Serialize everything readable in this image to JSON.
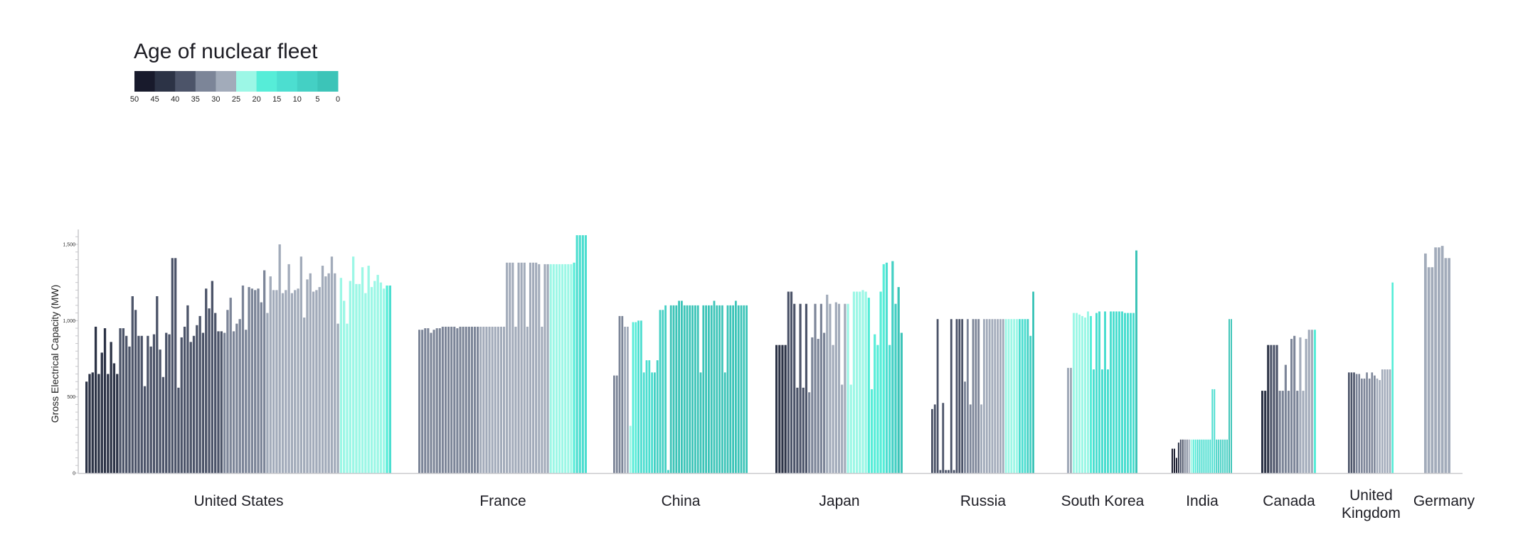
{
  "chart_data": {
    "type": "bar",
    "title": "Age of nuclear fleet",
    "ylabel": "Gross Electrical Capacity (MW)",
    "ylim": [
      0,
      1500
    ],
    "yticks": [
      0,
      500,
      1000,
      1500
    ],
    "ytick_labels": [
      "0",
      "500",
      "1,000",
      "1,500"
    ],
    "legend": {
      "labels": [
        "50",
        "45",
        "40",
        "35",
        "30",
        "25",
        "20",
        "15",
        "10",
        "5",
        "0"
      ],
      "colors": [
        "#181a2c",
        "#2c3346",
        "#4c5469",
        "#7c8598",
        "#a2abba",
        "#9cf7e6",
        "#56edd8",
        "#4cded0",
        "#44d0c4",
        "#3cc4b8"
      ]
    },
    "age_bands": [
      "45-50",
      "40-45",
      "35-40",
      "30-35",
      "25-30",
      "20-25",
      "15-20",
      "10-15",
      "5-10",
      "0-5"
    ],
    "countries": [
      {
        "name": "United States",
        "values": [
          600,
          650,
          660,
          960,
          650,
          790,
          950,
          650,
          860,
          720,
          650,
          950,
          950,
          900,
          830,
          1160,
          1070,
          900,
          900,
          570,
          900,
          830,
          910,
          1160,
          810,
          630,
          920,
          910,
          1410,
          1410,
          560,
          890,
          960,
          1100,
          860,
          900,
          970,
          1030,
          920,
          1210,
          1080,
          1260,
          1050,
          930,
          930,
          920,
          1070,
          1150,
          930,
          980,
          1010,
          1230,
          940,
          1220,
          1210,
          1200,
          1210,
          1120,
          1330,
          1050,
          1290,
          1200,
          1200,
          1500,
          1180,
          1200,
          1370,
          1180,
          1200,
          1210,
          1420,
          1020,
          1270,
          1310,
          1190,
          1200,
          1220,
          1360,
          1290,
          1310,
          1420,
          1310,
          980,
          1280,
          1130,
          980,
          1260,
          1420,
          1240,
          1240,
          1350,
          1180,
          1360,
          1220,
          1260,
          1300,
          1250,
          1210,
          1230,
          1230
        ],
        "ages": [
          1,
          1,
          1,
          1,
          1,
          1,
          1,
          1,
          1,
          1,
          1,
          2,
          2,
          2,
          2,
          2,
          2,
          2,
          2,
          2,
          2,
          2,
          2,
          2,
          2,
          2,
          2,
          2,
          2,
          2,
          2,
          2,
          2,
          2,
          2,
          2,
          2,
          2,
          2,
          2,
          2,
          2,
          2,
          2,
          2,
          3,
          3,
          3,
          3,
          3,
          3,
          3,
          3,
          3,
          3,
          3,
          3,
          3,
          3,
          4,
          4,
          4,
          4,
          4,
          4,
          4,
          4,
          4,
          4,
          4,
          4,
          4,
          4,
          4,
          4,
          4,
          4,
          4,
          4,
          4,
          4,
          4,
          4,
          5,
          5,
          5,
          5,
          5,
          5,
          5,
          5,
          5,
          5,
          5,
          5,
          5,
          5,
          5,
          6,
          7
        ]
      },
      {
        "name": "France",
        "values": [
          940,
          940,
          950,
          950,
          920,
          940,
          950,
          950,
          960,
          960,
          960,
          960,
          960,
          950,
          960,
          960,
          960,
          960,
          960,
          960,
          960,
          960,
          960,
          960,
          960,
          960,
          960,
          960,
          960,
          960,
          1380,
          1380,
          1380,
          960,
          1380,
          1380,
          1380,
          960,
          1380,
          1380,
          1380,
          1370,
          960,
          1370,
          1370,
          1370,
          1370,
          1370,
          1370,
          1370,
          1370,
          1370,
          1370,
          1380,
          1560,
          1560,
          1560,
          1560
        ],
        "ages": [
          3,
          3,
          3,
          3,
          3,
          3,
          3,
          3,
          3,
          3,
          3,
          3,
          3,
          3,
          3,
          3,
          3,
          3,
          3,
          3,
          3,
          4,
          4,
          4,
          4,
          4,
          4,
          4,
          4,
          4,
          4,
          4,
          4,
          4,
          4,
          4,
          4,
          4,
          4,
          4,
          4,
          4,
          4,
          4,
          4,
          5,
          5,
          5,
          5,
          5,
          5,
          5,
          5,
          6,
          7,
          7,
          7,
          7
        ]
      },
      {
        "name": "China",
        "values": [
          640,
          640,
          1030,
          1030,
          960,
          960,
          310,
          990,
          990,
          1000,
          1000,
          660,
          740,
          740,
          660,
          660,
          740,
          1070,
          1070,
          1100,
          20,
          1100,
          1100,
          1100,
          1130,
          1130,
          1100,
          1100,
          1100,
          1100,
          1100,
          1100,
          660,
          1100,
          1100,
          1100,
          1100,
          1130,
          1100,
          1100,
          1100,
          660,
          1100,
          1100,
          1100,
          1130,
          1100,
          1100,
          1100,
          1100
        ],
        "ages": [
          3,
          3,
          3,
          3,
          4,
          4,
          5,
          6,
          6,
          7,
          7,
          7,
          7,
          7,
          7,
          8,
          8,
          8,
          8,
          8,
          8,
          9,
          9,
          9,
          9,
          9,
          9,
          9,
          9,
          9,
          9,
          9,
          9,
          9,
          9,
          9,
          9,
          9,
          9,
          9,
          9,
          9,
          9,
          9,
          9,
          9,
          9,
          9,
          9,
          9
        ]
      },
      {
        "name": "Japan",
        "values": [
          840,
          840,
          840,
          840,
          1190,
          1190,
          1110,
          560,
          1110,
          560,
          1110,
          530,
          890,
          1110,
          880,
          1110,
          920,
          1170,
          1110,
          840,
          1120,
          1110,
          580,
          1110,
          1110,
          580,
          1190,
          1190,
          1190,
          1200,
          1190,
          1150,
          550,
          910,
          840,
          1190,
          1370,
          1380,
          840,
          1390,
          1110,
          1220,
          920
        ],
        "ages": [
          1,
          1,
          1,
          1,
          2,
          2,
          2,
          2,
          2,
          2,
          2,
          3,
          3,
          3,
          3,
          3,
          3,
          4,
          4,
          4,
          4,
          4,
          4,
          4,
          5,
          5,
          5,
          5,
          5,
          5,
          5,
          6,
          6,
          6,
          6,
          6,
          6,
          7,
          7,
          8,
          8,
          9,
          9
        ]
      },
      {
        "name": "Russia",
        "values": [
          420,
          450,
          1010,
          20,
          460,
          20,
          20,
          1010,
          20,
          1010,
          1010,
          1010,
          600,
          1010,
          450,
          1010,
          1010,
          1010,
          450,
          1010,
          1010,
          1010,
          1010,
          1010,
          1010,
          1010,
          1010,
          1010,
          1010,
          1010,
          1010,
          1010,
          1010,
          1010,
          1010,
          1010,
          900,
          1190
        ],
        "ages": [
          2,
          2,
          2,
          2,
          2,
          2,
          2,
          2,
          2,
          2,
          2,
          2,
          3,
          3,
          3,
          3,
          3,
          3,
          4,
          4,
          4,
          4,
          4,
          4,
          4,
          4,
          4,
          5,
          5,
          5,
          5,
          5,
          7,
          7,
          7,
          8,
          8,
          9
        ]
      },
      {
        "name": "South Korea",
        "values": [
          690,
          690,
          1050,
          1050,
          1040,
          1030,
          1020,
          1060,
          1030,
          680,
          1050,
          1060,
          680,
          1060,
          680,
          1060,
          1060,
          1060,
          1060,
          1060,
          1050,
          1050,
          1050,
          1050,
          1460
        ],
        "ages": [
          4,
          4,
          5,
          5,
          5,
          5,
          5,
          5,
          6,
          7,
          7,
          7,
          7,
          7,
          7,
          7,
          7,
          7,
          7,
          7,
          7,
          7,
          7,
          7,
          9
        ]
      },
      {
        "name": "India",
        "values": [
          160,
          160,
          100,
          200,
          220,
          220,
          220,
          220,
          220,
          220,
          220,
          220,
          220,
          220,
          220,
          220,
          220,
          220,
          220,
          550,
          550,
          220,
          220,
          220,
          220,
          220,
          220,
          1010,
          1010
        ],
        "ages": [
          0,
          0,
          0,
          1,
          2,
          2,
          3,
          3,
          4,
          5,
          6,
          6,
          7,
          7,
          7,
          7,
          7,
          7,
          7,
          7,
          7,
          8,
          8,
          8,
          8,
          8,
          8,
          9,
          9
        ]
      },
      {
        "name": "Canada",
        "values": [
          540,
          540,
          840,
          840,
          840,
          840,
          540,
          540,
          710,
          540,
          880,
          900,
          540,
          890,
          540,
          880,
          940,
          940,
          940
        ],
        "ages": [
          1,
          1,
          1,
          2,
          2,
          2,
          3,
          3,
          3,
          3,
          3,
          3,
          3,
          4,
          4,
          4,
          4,
          4,
          6
        ]
      },
      {
        "name": "United Kingdom",
        "values": [
          660,
          660,
          660,
          650,
          650,
          620,
          620,
          660,
          620,
          660,
          640,
          620,
          610,
          680,
          680,
          680,
          680,
          1250
        ],
        "ages": [
          2,
          2,
          2,
          3,
          3,
          3,
          3,
          3,
          3,
          3,
          3,
          4,
          4,
          4,
          4,
          4,
          4,
          6
        ]
      },
      {
        "name": "Germany",
        "values": [
          1440,
          1350,
          1350,
          1480,
          1480,
          1490,
          1410,
          1410
        ],
        "ages": [
          4,
          4,
          4,
          4,
          4,
          4,
          4,
          4
        ]
      }
    ]
  }
}
